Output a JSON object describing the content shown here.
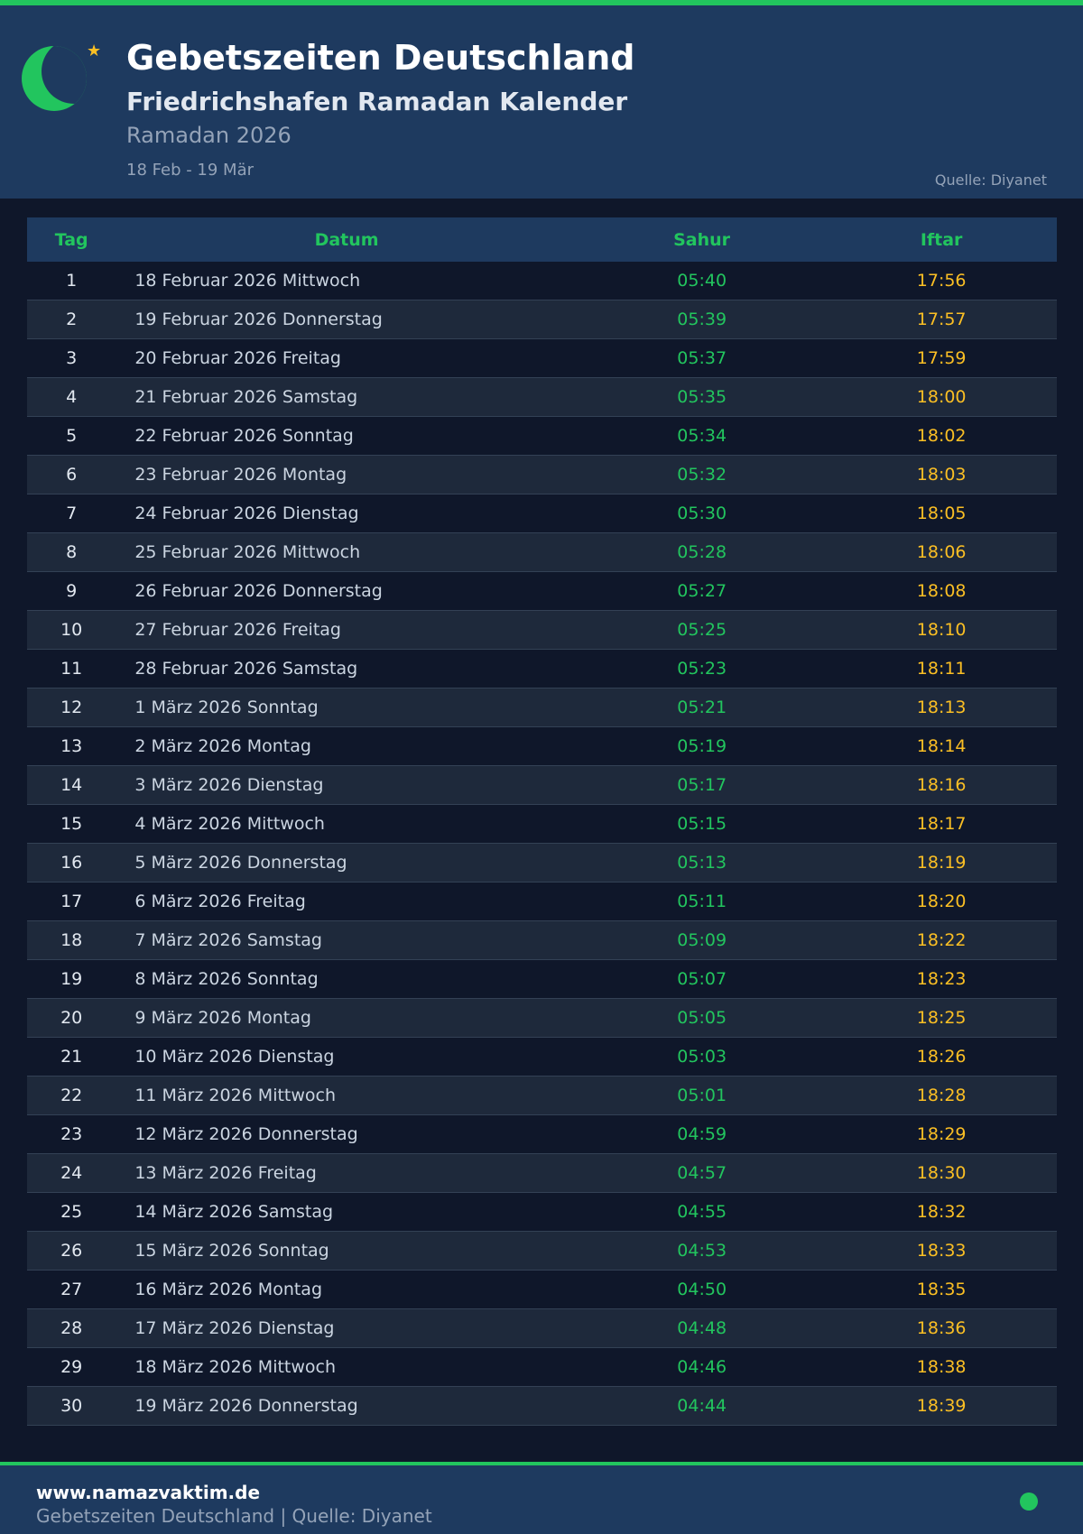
{
  "header": {
    "title": "Gebetszeiten Deutschland",
    "subtitle": "Friedrichshafen Ramadan Kalender",
    "ramadan": "Ramadan 2026",
    "range": "18 Feb - 19 Mär",
    "source": "Quelle: Diyanet",
    "icons": [
      "crescent-moon-icon",
      "star-icon"
    ]
  },
  "colors": {
    "accent": "#22c55e",
    "iftar": "#fbbf24",
    "header_bg": "#1e3a5f",
    "page_bg": "#0f172a"
  },
  "table": {
    "columns": {
      "tag": "Tag",
      "datum": "Datum",
      "sahur": "Sahur",
      "iftar": "Iftar"
    },
    "rows": [
      [
        "1",
        "18 Februar 2026 Mittwoch",
        "05:40",
        "17:56"
      ],
      [
        "2",
        "19 Februar 2026 Donnerstag",
        "05:39",
        "17:57"
      ],
      [
        "3",
        "20 Februar 2026 Freitag",
        "05:37",
        "17:59"
      ],
      [
        "4",
        "21 Februar 2026 Samstag",
        "05:35",
        "18:00"
      ],
      [
        "5",
        "22 Februar 2026 Sonntag",
        "05:34",
        "18:02"
      ],
      [
        "6",
        "23 Februar 2026 Montag",
        "05:32",
        "18:03"
      ],
      [
        "7",
        "24 Februar 2026 Dienstag",
        "05:30",
        "18:05"
      ],
      [
        "8",
        "25 Februar 2026 Mittwoch",
        "05:28",
        "18:06"
      ],
      [
        "9",
        "26 Februar 2026 Donnerstag",
        "05:27",
        "18:08"
      ],
      [
        "10",
        "27 Februar 2026 Freitag",
        "05:25",
        "18:10"
      ],
      [
        "11",
        "28 Februar 2026 Samstag",
        "05:23",
        "18:11"
      ],
      [
        "12",
        "1 März 2026 Sonntag",
        "05:21",
        "18:13"
      ],
      [
        "13",
        "2 März 2026 Montag",
        "05:19",
        "18:14"
      ],
      [
        "14",
        "3 März 2026 Dienstag",
        "05:17",
        "18:16"
      ],
      [
        "15",
        "4 März 2026 Mittwoch",
        "05:15",
        "18:17"
      ],
      [
        "16",
        "5 März 2026 Donnerstag",
        "05:13",
        "18:19"
      ],
      [
        "17",
        "6 März 2026 Freitag",
        "05:11",
        "18:20"
      ],
      [
        "18",
        "7 März 2026 Samstag",
        "05:09",
        "18:22"
      ],
      [
        "19",
        "8 März 2026 Sonntag",
        "05:07",
        "18:23"
      ],
      [
        "20",
        "9 März 2026 Montag",
        "05:05",
        "18:25"
      ],
      [
        "21",
        "10 März 2026 Dienstag",
        "05:03",
        "18:26"
      ],
      [
        "22",
        "11 März 2026 Mittwoch",
        "05:01",
        "18:28"
      ],
      [
        "23",
        "12 März 2026 Donnerstag",
        "04:59",
        "18:29"
      ],
      [
        "24",
        "13 März 2026 Freitag",
        "04:57",
        "18:30"
      ],
      [
        "25",
        "14 März 2026 Samstag",
        "04:55",
        "18:32"
      ],
      [
        "26",
        "15 März 2026 Sonntag",
        "04:53",
        "18:33"
      ],
      [
        "27",
        "16 März 2026 Montag",
        "04:50",
        "18:35"
      ],
      [
        "28",
        "17 März 2026 Dienstag",
        "04:48",
        "18:36"
      ],
      [
        "29",
        "18 März 2026 Mittwoch",
        "04:46",
        "18:38"
      ],
      [
        "30",
        "19 März 2026 Donnerstag",
        "04:44",
        "18:39"
      ]
    ]
  },
  "footer": {
    "url": "www.namazvaktim.de",
    "text": "Gebetszeiten Deutschland | Quelle: Diyanet"
  }
}
